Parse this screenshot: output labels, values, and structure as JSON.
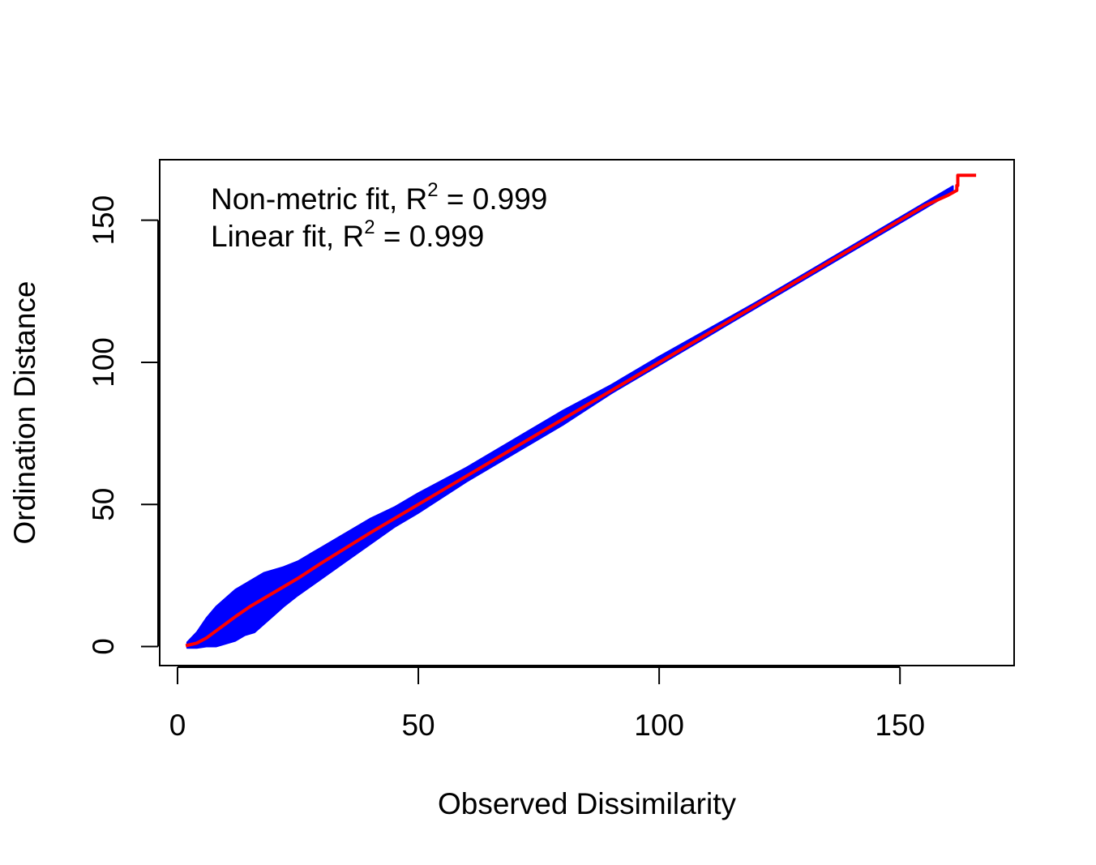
{
  "chart_data": {
    "type": "scatter",
    "title": "",
    "xlabel": "Observed Dissimilarity",
    "ylabel": "Ordination Distance",
    "xlim": [
      -3.7,
      173.7
    ],
    "ylim": [
      -6.7,
      171.3
    ],
    "xticks": [
      0,
      50,
      100,
      150
    ],
    "yticks": [
      0,
      50,
      100,
      150
    ],
    "annotations": [
      {
        "prefix": "Non-metric fit, R",
        "sup": "2",
        "suffix": " = 0.999"
      },
      {
        "prefix": "Linear fit, R",
        "sup": "2",
        "suffix": " = 0.999"
      }
    ],
    "colors": {
      "points": "#0000ff",
      "fit_line": "#ff0000",
      "axes": "#000000"
    },
    "grid": false,
    "legend": "none",
    "scatter_band": [
      {
        "x": 2,
        "y_low": -0.5,
        "y_high": 1.5
      },
      {
        "x": 4,
        "y_low": -0.5,
        "y_high": 5
      },
      {
        "x": 6,
        "y_low": 0,
        "y_high": 10
      },
      {
        "x": 8,
        "y_low": 0,
        "y_high": 14
      },
      {
        "x": 10,
        "y_low": 1,
        "y_high": 17
      },
      {
        "x": 12,
        "y_low": 2,
        "y_high": 20
      },
      {
        "x": 14,
        "y_low": 4,
        "y_high": 22
      },
      {
        "x": 16,
        "y_low": 5,
        "y_high": 24
      },
      {
        "x": 18,
        "y_low": 8,
        "y_high": 26
      },
      {
        "x": 20,
        "y_low": 11,
        "y_high": 27
      },
      {
        "x": 22,
        "y_low": 14,
        "y_high": 28
      },
      {
        "x": 25,
        "y_low": 18,
        "y_high": 30
      },
      {
        "x": 30,
        "y_low": 24,
        "y_high": 35
      },
      {
        "x": 35,
        "y_low": 30,
        "y_high": 40
      },
      {
        "x": 40,
        "y_low": 36,
        "y_high": 45
      },
      {
        "x": 45,
        "y_low": 42,
        "y_high": 49
      },
      {
        "x": 50,
        "y_low": 47,
        "y_high": 54
      },
      {
        "x": 60,
        "y_low": 58,
        "y_high": 63
      },
      {
        "x": 70,
        "y_low": 68,
        "y_high": 73
      },
      {
        "x": 80,
        "y_low": 78,
        "y_high": 83
      },
      {
        "x": 90,
        "y_low": 89,
        "y_high": 92
      },
      {
        "x": 100,
        "y_low": 99,
        "y_high": 102
      },
      {
        "x": 120,
        "y_low": 119,
        "y_high": 121
      },
      {
        "x": 140,
        "y_low": 139,
        "y_high": 141
      },
      {
        "x": 155,
        "y_low": 154,
        "y_high": 156
      },
      {
        "x": 161,
        "y_low": 160,
        "y_high": 162
      }
    ],
    "fit_line": [
      {
        "x": 1.7,
        "y": 0.3
      },
      {
        "x": 4,
        "y": 1.2
      },
      {
        "x": 6,
        "y": 3
      },
      {
        "x": 8,
        "y": 5.5
      },
      {
        "x": 10,
        "y": 8
      },
      {
        "x": 12,
        "y": 10.5
      },
      {
        "x": 15,
        "y": 14
      },
      {
        "x": 20,
        "y": 19
      },
      {
        "x": 25,
        "y": 24
      },
      {
        "x": 30,
        "y": 29.5
      },
      {
        "x": 40,
        "y": 40
      },
      {
        "x": 50,
        "y": 50
      },
      {
        "x": 60,
        "y": 60
      },
      {
        "x": 80,
        "y": 80
      },
      {
        "x": 100,
        "y": 100
      },
      {
        "x": 120,
        "y": 120
      },
      {
        "x": 140,
        "y": 140
      },
      {
        "x": 150,
        "y": 150
      },
      {
        "x": 155,
        "y": 155
      },
      {
        "x": 160,
        "y": 158.8
      },
      {
        "x": 161.8,
        "y": 160.5
      },
      {
        "x": 161.8,
        "y": 162.2
      },
      {
        "x": 162,
        "y": 162.2
      },
      {
        "x": 162,
        "y": 165.8
      },
      {
        "x": 165.8,
        "y": 165.8
      }
    ]
  }
}
